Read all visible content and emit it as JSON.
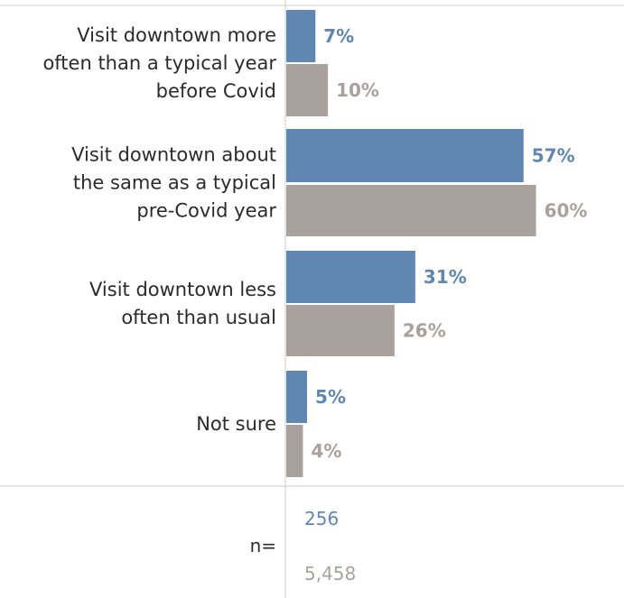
{
  "colors": {
    "series_a": "#5f87b2",
    "series_b": "#a8a19d",
    "axis": "#cccccc",
    "text": "#2b2b2b"
  },
  "chart_data": {
    "type": "bar",
    "orientation": "horizontal",
    "categories": [
      [
        "Visit downtown more",
        "often than a typical year",
        "before Covid"
      ],
      [
        "Visit downtown about",
        "the same as a typical",
        "pre-Covid year"
      ],
      [
        "Visit downtown less",
        "often than usual"
      ],
      [
        "Not sure"
      ]
    ],
    "series": [
      {
        "values": [
          7,
          57,
          31,
          5
        ],
        "labels": [
          "7%",
          "57%",
          "31%",
          "5%"
        ]
      },
      {
        "values": [
          10,
          60,
          26,
          4
        ],
        "labels": [
          "10%",
          "60%",
          "26%",
          "4%"
        ]
      }
    ],
    "n_label": "n=",
    "n_values": [
      "256",
      "5,458"
    ],
    "xlim": [
      0,
      70
    ],
    "grid": false,
    "legend": "none"
  }
}
